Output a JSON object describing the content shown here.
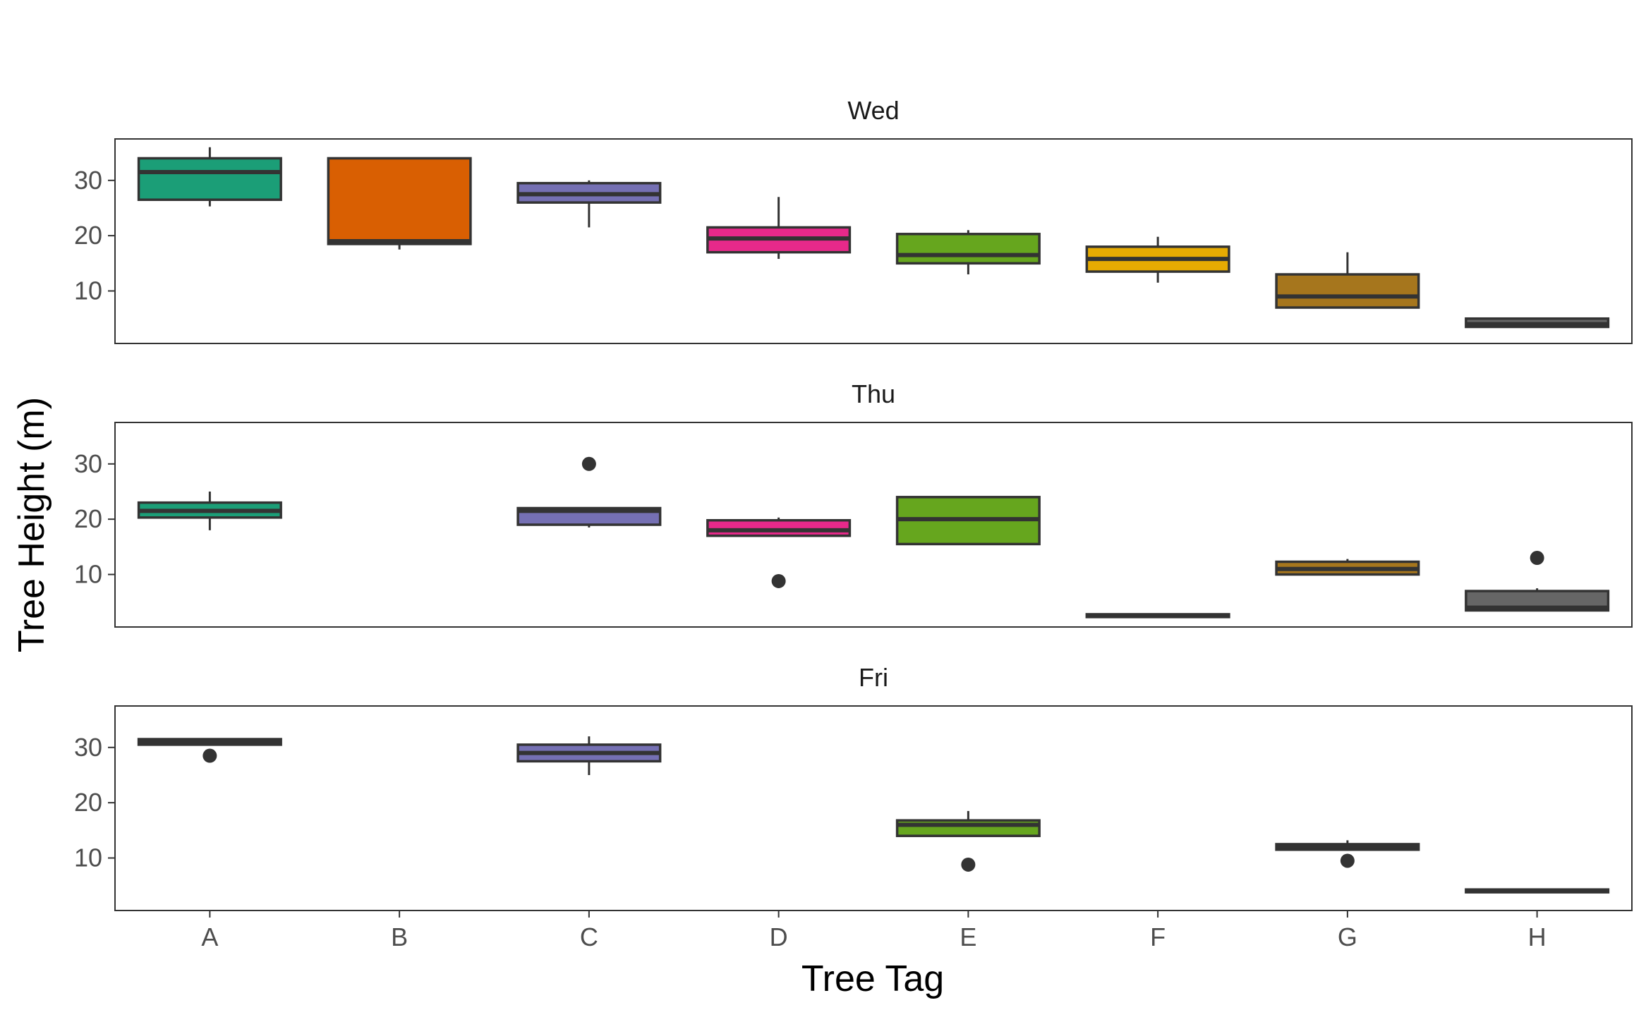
{
  "chart_data": {
    "type": "boxplot",
    "xlabel": "Tree Tag",
    "ylabel": "Tree Height (m)",
    "categories": [
      "A",
      "B",
      "C",
      "D",
      "E",
      "F",
      "G",
      "H"
    ],
    "ylim": [
      0.5,
      37.5
    ],
    "yticks": [
      10,
      20,
      30
    ],
    "grid": false,
    "legend": "none",
    "colors": {
      "A": "#1b9e77",
      "B": "#d95f02",
      "C": "#7570b3",
      "D": "#e7298a",
      "E": "#66a61e",
      "F": "#e6ab02",
      "G": "#a6761d",
      "H": "#666666"
    },
    "panels": [
      {
        "facet": "Wed",
        "boxes": [
          {
            "cat": "A",
            "min": 25.3,
            "q1": 26.5,
            "median": 31.5,
            "q3": 34,
            "max": 36,
            "outliers": []
          },
          {
            "cat": "B",
            "min": 17.5,
            "q1": 18.5,
            "median": 19,
            "q3": 34,
            "max": 34,
            "outliers": []
          },
          {
            "cat": "C",
            "min": 21.5,
            "q1": 26,
            "median": 27.5,
            "q3": 29.5,
            "max": 30,
            "outliers": []
          },
          {
            "cat": "D",
            "min": 15.8,
            "q1": 17,
            "median": 19.5,
            "q3": 21.5,
            "max": 27,
            "outliers": []
          },
          {
            "cat": "E",
            "min": 13,
            "q1": 15,
            "median": 16.5,
            "q3": 20.3,
            "max": 21,
            "outliers": []
          },
          {
            "cat": "F",
            "min": 11.5,
            "q1": 13.5,
            "median": 15.8,
            "q3": 18,
            "max": 19.8,
            "outliers": []
          },
          {
            "cat": "G",
            "min": 7,
            "q1": 7,
            "median": 9,
            "q3": 13,
            "max": 17,
            "outliers": []
          },
          {
            "cat": "H",
            "min": 3.5,
            "q1": 3.5,
            "median": 4,
            "q3": 5,
            "max": 5,
            "outliers": []
          }
        ]
      },
      {
        "facet": "Thu",
        "boxes": [
          {
            "cat": "A",
            "min": 18,
            "q1": 20.3,
            "median": 21.5,
            "q3": 23,
            "max": 25,
            "outliers": []
          },
          {
            "cat": "C",
            "min": 18.5,
            "q1": 19,
            "median": 21.5,
            "q3": 22,
            "max": 22,
            "outliers": [
              30
            ]
          },
          {
            "cat": "D",
            "min": 17,
            "q1": 17,
            "median": 18,
            "q3": 19.8,
            "max": 20.3,
            "outliers": [
              8.8
            ]
          },
          {
            "cat": "E",
            "min": 15.5,
            "q1": 15.5,
            "median": 20,
            "q3": 24,
            "max": 24,
            "outliers": []
          },
          {
            "cat": "F",
            "min": 2.3,
            "q1": 2.3,
            "median": 2.5,
            "q3": 2.8,
            "max": 2.8,
            "outliers": []
          },
          {
            "cat": "G",
            "min": 10,
            "q1": 10,
            "median": 11,
            "q3": 12.3,
            "max": 12.8,
            "outliers": []
          },
          {
            "cat": "H",
            "min": 3.5,
            "q1": 3.5,
            "median": 4,
            "q3": 7,
            "max": 7.5,
            "outliers": [
              13
            ]
          }
        ]
      },
      {
        "facet": "Fri",
        "boxes": [
          {
            "cat": "A",
            "min": 30.5,
            "q1": 30.5,
            "median": 31,
            "q3": 31.5,
            "max": 31.5,
            "outliers": [
              28.5
            ]
          },
          {
            "cat": "C",
            "min": 25,
            "q1": 27.5,
            "median": 29,
            "q3": 30.5,
            "max": 32,
            "outliers": []
          },
          {
            "cat": "E",
            "min": 14,
            "q1": 14,
            "median": 16,
            "q3": 16.8,
            "max": 18.5,
            "outliers": [
              8.8
            ]
          },
          {
            "cat": "G",
            "min": 11.5,
            "q1": 11.5,
            "median": 12,
            "q3": 12.5,
            "max": 13.2,
            "outliers": [
              9.5
            ]
          },
          {
            "cat": "H",
            "min": 3.8,
            "q1": 3.8,
            "median": 4,
            "q3": 4.3,
            "max": 4.3,
            "outliers": []
          }
        ]
      }
    ]
  }
}
